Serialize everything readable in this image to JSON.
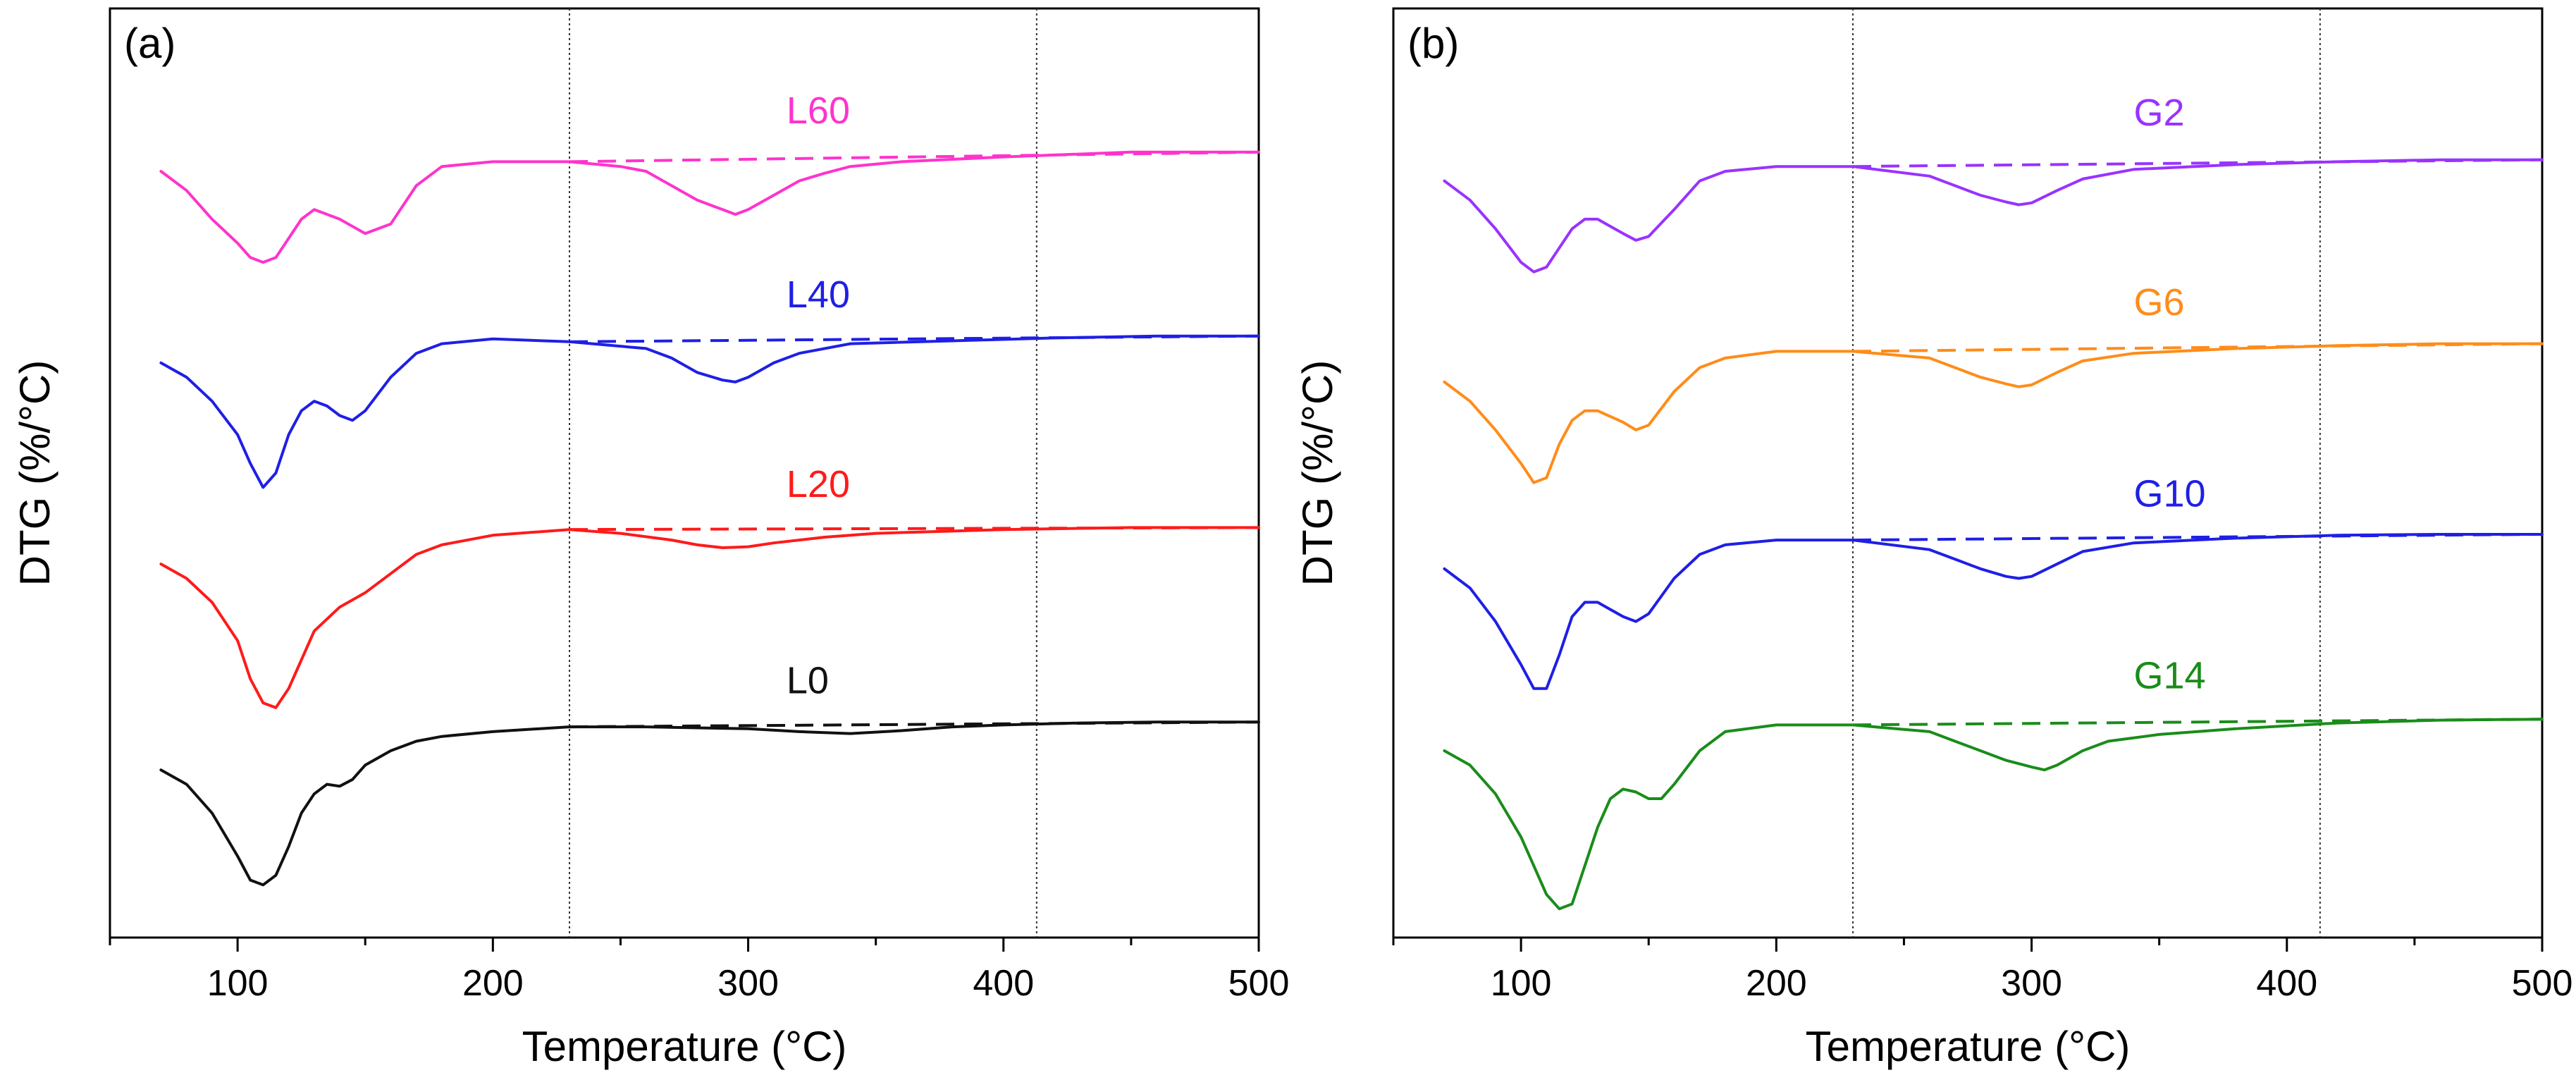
{
  "chart_data": [
    {
      "type": "line",
      "panel_label": "(a)",
      "xlabel": "Temperature (°C)",
      "ylabel": "DTG (%/°C)",
      "xlim": [
        50,
        500
      ],
      "ylim": [
        0,
        9.7
      ],
      "xticks": [
        100,
        200,
        300,
        400,
        500
      ],
      "minor_xticks": [
        50,
        150,
        250,
        350,
        450
      ],
      "reference_lines_x": [
        230,
        413
      ],
      "series": [
        {
          "name": "L60",
          "color": "#ff33cc",
          "label_anchor": [
            315,
            8.5
          ],
          "x": [
            70,
            80,
            90,
            100,
            105,
            110,
            115,
            120,
            125,
            130,
            140,
            150,
            160,
            170,
            180,
            200,
            230,
            250,
            260,
            270,
            280,
            290,
            295,
            300,
            310,
            320,
            330,
            340,
            360,
            400,
            450,
            500
          ],
          "y": [
            8.0,
            7.8,
            7.5,
            7.25,
            7.1,
            7.05,
            7.1,
            7.3,
            7.5,
            7.6,
            7.5,
            7.35,
            7.45,
            7.85,
            8.05,
            8.1,
            8.1,
            8.05,
            8.0,
            7.85,
            7.7,
            7.6,
            7.55,
            7.6,
            7.75,
            7.9,
            7.98,
            8.05,
            8.1,
            8.15,
            8.2,
            8.2
          ],
          "baseline": [
            [
              230,
              8.1
            ],
            [
              500,
              8.2
            ]
          ]
        },
        {
          "name": "L40",
          "color": "#1f1fe6",
          "label_anchor": [
            315,
            6.58
          ],
          "x": [
            70,
            80,
            90,
            100,
            105,
            110,
            115,
            120,
            125,
            130,
            135,
            140,
            145,
            150,
            160,
            170,
            180,
            200,
            230,
            260,
            270,
            280,
            290,
            295,
            300,
            310,
            320,
            340,
            380,
            420,
            460,
            500
          ],
          "y": [
            6.0,
            5.85,
            5.6,
            5.25,
            4.95,
            4.7,
            4.85,
            5.25,
            5.5,
            5.6,
            5.55,
            5.45,
            5.4,
            5.5,
            5.85,
            6.1,
            6.2,
            6.25,
            6.22,
            6.15,
            6.05,
            5.9,
            5.82,
            5.8,
            5.85,
            6.0,
            6.1,
            6.2,
            6.23,
            6.26,
            6.28,
            6.28
          ],
          "baseline": [
            [
              230,
              6.22
            ],
            [
              500,
              6.28
            ]
          ]
        },
        {
          "name": "L20",
          "color": "#ff1a1a",
          "label_anchor": [
            315,
            4.6
          ],
          "x": [
            70,
            80,
            90,
            100,
            105,
            110,
            115,
            120,
            125,
            130,
            140,
            150,
            160,
            170,
            180,
            200,
            230,
            250,
            270,
            280,
            290,
            300,
            310,
            330,
            350,
            400,
            450,
            500
          ],
          "y": [
            3.9,
            3.75,
            3.5,
            3.1,
            2.7,
            2.45,
            2.4,
            2.6,
            2.9,
            3.2,
            3.45,
            3.6,
            3.8,
            4.0,
            4.1,
            4.2,
            4.26,
            4.22,
            4.15,
            4.1,
            4.07,
            4.08,
            4.12,
            4.18,
            4.22,
            4.26,
            4.28,
            4.28
          ],
          "baseline": [
            [
              230,
              4.26
            ],
            [
              500,
              4.28
            ]
          ]
        },
        {
          "name": "L0",
          "color": "#111111",
          "label_anchor": [
            315,
            2.55
          ],
          "x": [
            70,
            80,
            90,
            100,
            105,
            110,
            115,
            120,
            125,
            130,
            135,
            140,
            145,
            150,
            160,
            170,
            180,
            200,
            230,
            260,
            300,
            320,
            340,
            360,
            380,
            400,
            430,
            460,
            500
          ],
          "y": [
            1.75,
            1.6,
            1.3,
            0.85,
            0.6,
            0.55,
            0.65,
            0.95,
            1.3,
            1.5,
            1.6,
            1.58,
            1.65,
            1.8,
            1.95,
            2.05,
            2.1,
            2.15,
            2.2,
            2.2,
            2.18,
            2.15,
            2.13,
            2.16,
            2.2,
            2.22,
            2.24,
            2.25,
            2.25
          ],
          "baseline": [
            [
              230,
              2.2
            ],
            [
              500,
              2.25
            ]
          ]
        }
      ]
    },
    {
      "type": "line",
      "panel_label": "(b)",
      "xlabel": "Temperature (°C)",
      "ylabel": "DTG (%/°C)",
      "xlim": [
        50,
        500
      ],
      "ylim": [
        0,
        9.7
      ],
      "xticks": [
        100,
        200,
        300,
        400,
        500
      ],
      "minor_xticks": [
        50,
        150,
        250,
        350,
        450
      ],
      "reference_lines_x": [
        230,
        413
      ],
      "series": [
        {
          "name": "G2",
          "color": "#9933ff",
          "label_anchor": [
            340,
            8.48
          ],
          "x": [
            70,
            80,
            90,
            100,
            105,
            110,
            115,
            120,
            125,
            130,
            140,
            145,
            150,
            160,
            170,
            180,
            200,
            230,
            260,
            270,
            280,
            290,
            295,
            300,
            310,
            320,
            340,
            380,
            420,
            460,
            500
          ],
          "y": [
            7.9,
            7.7,
            7.4,
            7.05,
            6.95,
            7.0,
            7.2,
            7.4,
            7.5,
            7.5,
            7.35,
            7.28,
            7.32,
            7.6,
            7.9,
            8.0,
            8.05,
            8.05,
            7.95,
            7.85,
            7.75,
            7.68,
            7.65,
            7.67,
            7.8,
            7.92,
            8.02,
            8.07,
            8.1,
            8.12,
            8.12
          ],
          "baseline": [
            [
              230,
              8.05
            ],
            [
              500,
              8.12
            ]
          ]
        },
        {
          "name": "G6",
          "color": "#ff8c1a",
          "label_anchor": [
            340,
            6.5
          ],
          "x": [
            70,
            80,
            90,
            100,
            105,
            110,
            115,
            120,
            125,
            130,
            140,
            145,
            150,
            160,
            170,
            180,
            200,
            230,
            260,
            270,
            280,
            290,
            295,
            300,
            310,
            320,
            340,
            380,
            420,
            460,
            500
          ],
          "y": [
            5.8,
            5.6,
            5.3,
            4.95,
            4.75,
            4.8,
            5.15,
            5.4,
            5.5,
            5.5,
            5.38,
            5.3,
            5.35,
            5.7,
            5.95,
            6.05,
            6.12,
            6.12,
            6.05,
            5.95,
            5.85,
            5.78,
            5.75,
            5.77,
            5.9,
            6.02,
            6.1,
            6.15,
            6.18,
            6.2,
            6.2
          ],
          "baseline": [
            [
              230,
              6.12
            ],
            [
              500,
              6.2
            ]
          ]
        },
        {
          "name": "G10",
          "color": "#1f1fe6",
          "label_anchor": [
            340,
            4.5
          ],
          "x": [
            70,
            80,
            90,
            100,
            105,
            110,
            115,
            120,
            125,
            130,
            140,
            145,
            150,
            160,
            170,
            180,
            200,
            230,
            260,
            270,
            280,
            290,
            295,
            300,
            310,
            320,
            340,
            380,
            420,
            460,
            500
          ],
          "y": [
            3.85,
            3.65,
            3.3,
            2.85,
            2.6,
            2.6,
            2.95,
            3.35,
            3.5,
            3.5,
            3.35,
            3.3,
            3.38,
            3.75,
            4.0,
            4.1,
            4.15,
            4.15,
            4.05,
            3.95,
            3.85,
            3.77,
            3.75,
            3.77,
            3.9,
            4.03,
            4.12,
            4.17,
            4.2,
            4.21,
            4.21
          ],
          "baseline": [
            [
              230,
              4.15
            ],
            [
              500,
              4.21
            ]
          ]
        },
        {
          "name": "G14",
          "color": "#1a8c1a",
          "label_anchor": [
            340,
            2.6
          ],
          "x": [
            70,
            80,
            90,
            100,
            105,
            110,
            115,
            120,
            125,
            130,
            135,
            140,
            145,
            150,
            155,
            160,
            170,
            180,
            200,
            230,
            260,
            270,
            280,
            290,
            300,
            305,
            310,
            320,
            330,
            350,
            380,
            420,
            460,
            500
          ],
          "y": [
            1.95,
            1.8,
            1.5,
            1.05,
            0.75,
            0.45,
            0.3,
            0.35,
            0.75,
            1.15,
            1.45,
            1.55,
            1.52,
            1.45,
            1.45,
            1.6,
            1.95,
            2.15,
            2.22,
            2.22,
            2.15,
            2.05,
            1.95,
            1.85,
            1.78,
            1.75,
            1.8,
            1.95,
            2.05,
            2.12,
            2.18,
            2.24,
            2.27,
            2.28
          ],
          "baseline": [
            [
              230,
              2.22
            ],
            [
              500,
              2.28
            ]
          ]
        }
      ]
    }
  ]
}
